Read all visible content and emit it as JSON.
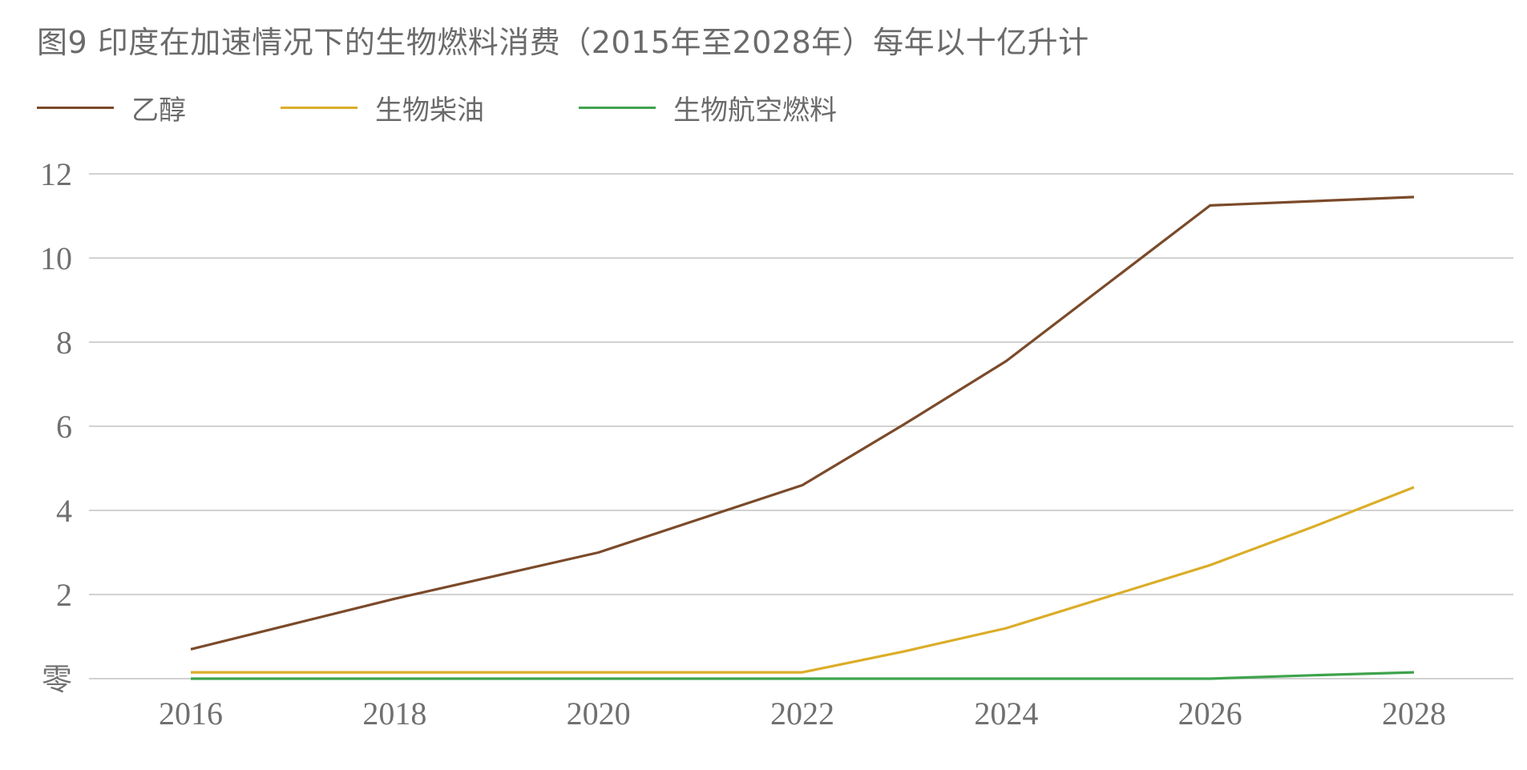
{
  "chart_data": {
    "type": "line",
    "title": "图9 印度在加速情况下的生物燃料消费（2015年至2028年）每年以十亿升计",
    "x": [
      "2016",
      "2017",
      "2018",
      "2019",
      "2020",
      "2021",
      "2022",
      "2023",
      "2024",
      "2025",
      "2026",
      "2027",
      "2028"
    ],
    "x_tick_labels": [
      "2016",
      "2018",
      "2020",
      "2022",
      "2024",
      "2026",
      "2028"
    ],
    "y_tick_labels": [
      "零",
      "2",
      "4",
      "6",
      "8",
      "10",
      "12"
    ],
    "y_ticks": [
      0,
      2,
      4,
      6,
      8,
      10,
      12
    ],
    "ylim": [
      0,
      12
    ],
    "grid": true,
    "legend_position": "top-left",
    "series": [
      {
        "name": "乙醇",
        "color": "#7b4a2a",
        "values": [
          0.7,
          1.3,
          1.9,
          2.45,
          3.0,
          3.8,
          4.6,
          6.05,
          7.55,
          9.4,
          11.25,
          11.35,
          11.45
        ]
      },
      {
        "name": "生物柴油",
        "color": "#dbad28",
        "values": [
          0.15,
          0.15,
          0.15,
          0.15,
          0.15,
          0.15,
          0.15,
          0.65,
          1.2,
          1.95,
          2.7,
          3.6,
          4.55
        ]
      },
      {
        "name": "生物航空燃料",
        "color": "#3fa34d",
        "values": [
          0.0,
          0.0,
          0.0,
          0.0,
          0.0,
          0.0,
          0.0,
          0.0,
          0.0,
          0.0,
          0.0,
          0.08,
          0.15
        ]
      }
    ]
  }
}
